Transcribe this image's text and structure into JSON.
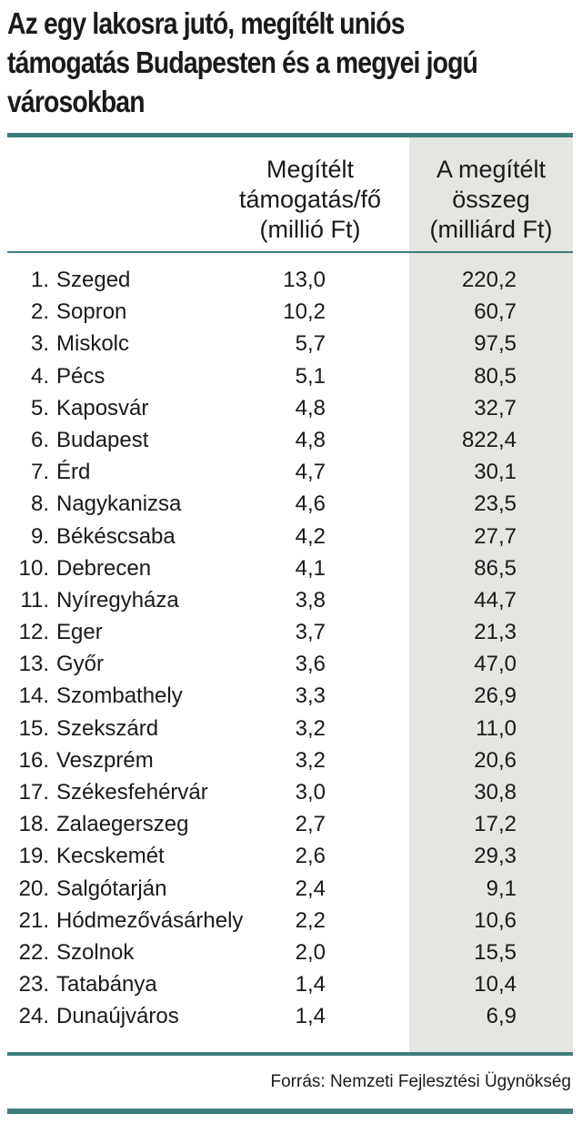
{
  "title_lines": [
    "Az egy lakosra jutó, megítélt uniós",
    "támogatás Budapesten és a megyei jogú",
    "városokban"
  ],
  "columns": {
    "per_capita": [
      "Megítélt",
      "támogatás/fő",
      "(millió Ft)"
    ],
    "total": [
      "A megítélt",
      "összeg",
      "(milliárd Ft)"
    ]
  },
  "rows": [
    {
      "rank": "1.",
      "city": "Szeged",
      "per_capita": "13,0",
      "total": "220,2"
    },
    {
      "rank": "2.",
      "city": "Sopron",
      "per_capita": "10,2",
      "total": "60,7"
    },
    {
      "rank": "3.",
      "city": "Miskolc",
      "per_capita": "5,7",
      "total": "97,5"
    },
    {
      "rank": "4.",
      "city": "Pécs",
      "per_capita": "5,1",
      "total": "80,5"
    },
    {
      "rank": "5.",
      "city": "Kaposvár",
      "per_capita": "4,8",
      "total": "32,7"
    },
    {
      "rank": "6.",
      "city": "Budapest",
      "per_capita": "4,8",
      "total": "822,4"
    },
    {
      "rank": "7.",
      "city": "Érd",
      "per_capita": "4,7",
      "total": "30,1"
    },
    {
      "rank": "8.",
      "city": "Nagykanizsa",
      "per_capita": "4,6",
      "total": "23,5"
    },
    {
      "rank": "9.",
      "city": "Békéscsaba",
      "per_capita": "4,2",
      "total": "27,7"
    },
    {
      "rank": "10.",
      "city": "Debrecen",
      "per_capita": "4,1",
      "total": "86,5"
    },
    {
      "rank": "11.",
      "city": "Nyíregyháza",
      "per_capita": "3,8",
      "total": "44,7"
    },
    {
      "rank": "12.",
      "city": "Eger",
      "per_capita": "3,7",
      "total": "21,3"
    },
    {
      "rank": "13.",
      "city": "Győr",
      "per_capita": "3,6",
      "total": "47,0"
    },
    {
      "rank": "14.",
      "city": "Szombathely",
      "per_capita": "3,3",
      "total": "26,9"
    },
    {
      "rank": "15.",
      "city": "Szekszárd",
      "per_capita": "3,2",
      "total": "11,0"
    },
    {
      "rank": "16.",
      "city": "Veszprém",
      "per_capita": "3,2",
      "total": "20,6"
    },
    {
      "rank": "17.",
      "city": "Székesfehérvár",
      "per_capita": "3,0",
      "total": "30,8"
    },
    {
      "rank": "18.",
      "city": "Zalaegerszeg",
      "per_capita": "2,7",
      "total": "17,2"
    },
    {
      "rank": "19.",
      "city": "Kecskemét",
      "per_capita": "2,6",
      "total": "29,3"
    },
    {
      "rank": "20.",
      "city": "Salgótarján",
      "per_capita": "2,4",
      "total": "9,1"
    },
    {
      "rank": "21.",
      "city": "Hódmezővásárhely",
      "per_capita": "2,2",
      "total": "10,6"
    },
    {
      "rank": "22.",
      "city": "Szolnok",
      "per_capita": "2,0",
      "total": "15,5"
    },
    {
      "rank": "23.",
      "city": "Tatabánya",
      "per_capita": "1,4",
      "total": "10,4"
    },
    {
      "rank": "24.",
      "city": "Dunaújváros",
      "per_capita": "1,4",
      "total": "6,9"
    }
  ],
  "source": "Forrás: Nemzeti Fejlesztési Ügynökség",
  "colors": {
    "accent_rule": "#3f7d7d",
    "shaded_column": "#e4e6e2",
    "text": "#1a1a1a"
  }
}
